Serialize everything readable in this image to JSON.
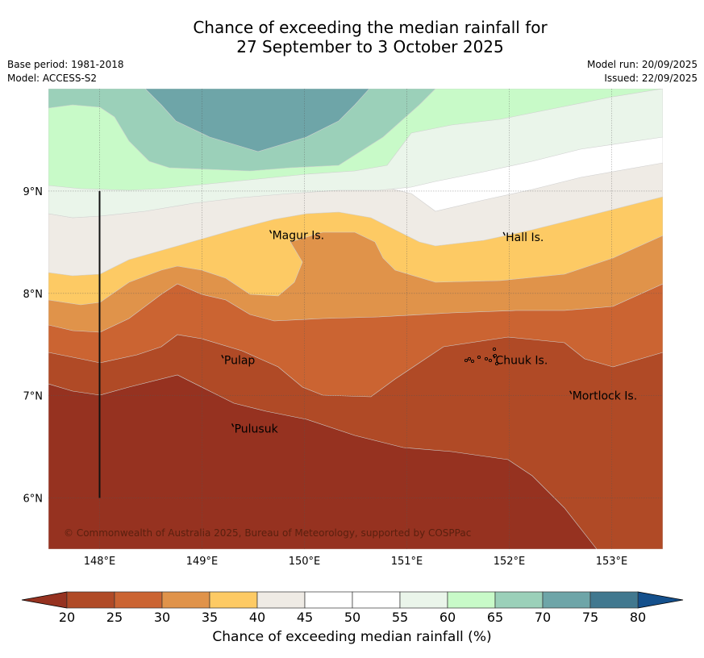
{
  "header": {
    "title_line1": "Chance of exceeding the median rainfall for",
    "title_line2": "27 September to 3 October 2025",
    "base_period": "Base period: 1981-2018",
    "model": "Model: ACCESS-S2",
    "model_run": "Model run: 20/09/2025",
    "issued": "Issued: 22/09/2025"
  },
  "map": {
    "lon_range": [
      147.5,
      153.5
    ],
    "lat_range": [
      5.5,
      10.0
    ],
    "lon_ticks": [
      "148°E",
      "149°E",
      "150°E",
      "151°E",
      "152°E",
      "153°E"
    ],
    "lon_tick_values": [
      148,
      149,
      150,
      151,
      152,
      153
    ],
    "lat_ticks": [
      "9°N",
      "8°N",
      "7°N",
      "6°N"
    ],
    "lat_tick_values": [
      9,
      8,
      7,
      6
    ],
    "places": [
      {
        "name": "Magur Is.",
        "lon": 149.67,
        "lat": 8.57
      },
      {
        "name": "Hall Is.",
        "lon": 151.95,
        "lat": 8.55
      },
      {
        "name": "Pulap",
        "lon": 149.2,
        "lat": 7.35
      },
      {
        "name": "Chuuk Is.",
        "lon": 151.85,
        "lat": 7.35
      },
      {
        "name": "Mortlock Is.",
        "lon": 152.6,
        "lat": 7.0
      },
      {
        "name": "Pulusuk",
        "lon": 149.3,
        "lat": 6.68
      }
    ],
    "copyright": "© Commonwealth of Australia 2025, Bureau of Meteorology, supported by COSPPac",
    "boundary_line": {
      "lon": 148.0,
      "lat_from": 6.0,
      "lat_to": 9.0
    }
  },
  "colorbar": {
    "label": "Chance of exceeding median rainfall (%)",
    "ticks": [
      "20",
      "25",
      "30",
      "35",
      "40",
      "45",
      "50",
      "55",
      "60",
      "65",
      "70",
      "75",
      "80"
    ],
    "under_color": "#963220",
    "over_color": "#14508c",
    "colors": [
      "#b04a26",
      "#cb6432",
      "#e0934a",
      "#fdca64",
      "#efebe5",
      "#ffffff",
      "#ffffff",
      "#eaf5ea",
      "#c8fac8",
      "#9bd0b9",
      "#6ea5a8",
      "#41788f"
    ]
  }
}
